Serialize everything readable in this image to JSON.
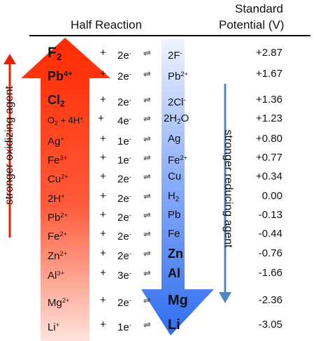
{
  "header": {
    "half_reaction": "Half Reaction",
    "standard": "Standard",
    "potential": "Potential (V)"
  },
  "labels": {
    "oxidizing": "stronger oxidizing agent",
    "reducing": "stronger reducing agent"
  },
  "colors": {
    "red_arrow": "#ff2a00",
    "blue_arrow": "#2f6df0",
    "side_red": "#e82000",
    "side_blue": "#4e86c6"
  },
  "rows": [
    {
      "ox": "F",
      "ox_sub": "2",
      "ox_sup": "",
      "plus": "+",
      "e": "2e",
      "e_sup": "-",
      "eq": "⇌",
      "red": "2F",
      "red_sub": "",
      "red_sup": "-",
      "pot": "+2.87"
    },
    {
      "ox": "Pb",
      "ox_sub": "",
      "ox_sup": "4+",
      "plus": "+",
      "e": "2e",
      "e_sup": "-",
      "eq": "⇌",
      "red": "Pb",
      "red_sub": "",
      "red_sup": "2+",
      "pot": "+1.67"
    },
    {
      "ox": "Cl",
      "ox_sub": "2",
      "ox_sup": "",
      "plus": "+",
      "e": "2e",
      "e_sup": "-",
      "eq": "⇌",
      "red": "2Cl",
      "red_sub": "",
      "red_sup": "-",
      "pot": "+1.36"
    },
    {
      "ox": "O",
      "ox_sub": "2",
      "ox_sup": "",
      "ox_extra": " + 4H",
      "ox_extra_sup": "+",
      "plus": "+",
      "e": "4e",
      "e_sup": "-",
      "eq": "⇌",
      "red": "2H",
      "red_sub": "2",
      "red_tail": "O",
      "red_sup": "",
      "pot": "+1.23"
    },
    {
      "ox": "Ag",
      "ox_sub": "",
      "ox_sup": "+",
      "plus": "+",
      "e": "1e",
      "e_sup": "-",
      "eq": "⇌",
      "red": "Ag",
      "red_sub": "",
      "red_sup": "",
      "pot": "+0.80"
    },
    {
      "ox": "Fe",
      "ox_sub": "",
      "ox_sup": "3+",
      "plus": "+",
      "e": "1e",
      "e_sup": "-",
      "eq": "⇌",
      "red": "Fe",
      "red_sub": "",
      "red_sup": "2+",
      "pot": "+0.77"
    },
    {
      "ox": "Cu",
      "ox_sub": "",
      "ox_sup": "2+",
      "plus": "+",
      "e": "2e",
      "e_sup": "-",
      "eq": "⇌",
      "red": "Cu",
      "red_sub": "",
      "red_sup": "",
      "pot": "+0.34"
    },
    {
      "ox": "2H",
      "ox_sub": "",
      "ox_sup": "+",
      "plus": "+",
      "e": "2e",
      "e_sup": "-",
      "eq": "⇌",
      "red": "H",
      "red_sub": "2",
      "red_sup": "",
      "pot": "0.00"
    },
    {
      "ox": "Pb",
      "ox_sub": "",
      "ox_sup": "2+",
      "plus": "+",
      "e": "2e",
      "e_sup": "-",
      "eq": "⇌",
      "red": "Pb",
      "red_sub": "",
      "red_sup": "",
      "pot": "-0.13"
    },
    {
      "ox": "Fe",
      "ox_sub": "",
      "ox_sup": "2+",
      "plus": "+",
      "e": "2e",
      "e_sup": "-",
      "eq": "⇌",
      "red": "Fe",
      "red_sub": "",
      "red_sup": "",
      "pot": "-0.44"
    },
    {
      "ox": "Zn",
      "ox_sub": "",
      "ox_sup": "2+",
      "plus": "+",
      "e": "2e",
      "e_sup": "-",
      "eq": "⇌",
      "red": "Zn",
      "red_sub": "",
      "red_sup": "",
      "pot": "-0.76"
    },
    {
      "ox": "Al",
      "ox_sub": "",
      "ox_sup": "3+",
      "plus": "+",
      "e": "3e",
      "e_sup": "-",
      "eq": "⇌",
      "red": "Al",
      "red_sub": "",
      "red_sup": "",
      "pot": "-1.66"
    },
    {
      "ox": "Mg",
      "ox_sub": "",
      "ox_sup": "2+",
      "plus": "+",
      "e": "2e",
      "e_sup": "-",
      "eq": "⇌",
      "red": "Mg",
      "red_sub": "",
      "red_sup": "",
      "pot": "-2.36"
    },
    {
      "ox": "Li",
      "ox_sub": "",
      "ox_sup": "+",
      "plus": "+",
      "e": "1e",
      "e_sup": "-",
      "eq": "⇌",
      "red": "Li",
      "red_sub": "",
      "red_sup": "",
      "pot": "-3.05"
    }
  ]
}
